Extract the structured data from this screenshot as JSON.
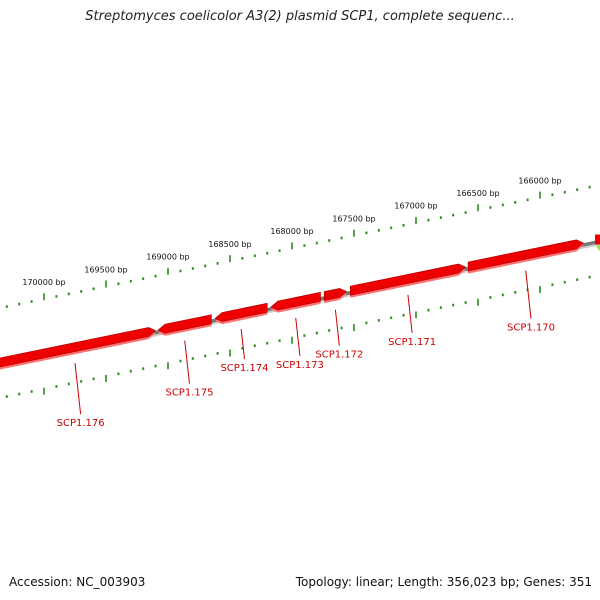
{
  "header": {
    "title": "Streptomyces coelicolor A3(2) plasmid SCP1, complete sequenc..."
  },
  "footer": {
    "accession": "Accession: NC_003903",
    "stats": "Topology: linear; Length: 356,023 bp; Genes: 351"
  },
  "colors": {
    "gene": "#ee0000",
    "gene_dark": "#aa0000",
    "gene_light": "#ff7070",
    "backbone": "#777777",
    "backbone_light": "#d0d0d0",
    "ruler": "#2e8b1f",
    "label": "#cc0000",
    "partial_feature": "#9ae05a"
  },
  "ruler": {
    "unit": "bp",
    "labels": [
      "166000 bp",
      "166500 bp",
      "167000 bp",
      "167500 bp",
      "168000 bp",
      "168500 bp",
      "169000 bp",
      "169500 bp",
      "170000 bp"
    ]
  },
  "genes": [
    {
      "id": "SCP1.170",
      "start": 165650,
      "end": 166580,
      "strand": "-"
    },
    {
      "id": "SCP1.171",
      "start": 166600,
      "end": 167530,
      "strand": "-"
    },
    {
      "id": "SCP1.172",
      "start": 167560,
      "end": 167740,
      "strand": "-"
    },
    {
      "id": "SCP1.173",
      "start": 167770,
      "end": 168170,
      "strand": "+"
    },
    {
      "id": "SCP1.174",
      "start": 168200,
      "end": 168620,
      "strand": "+"
    },
    {
      "id": "SCP1.175",
      "start": 168650,
      "end": 169080,
      "strand": "+"
    },
    {
      "id": "SCP1.176",
      "start": 169100,
      "end": 170400,
      "strand": "-"
    }
  ]
}
